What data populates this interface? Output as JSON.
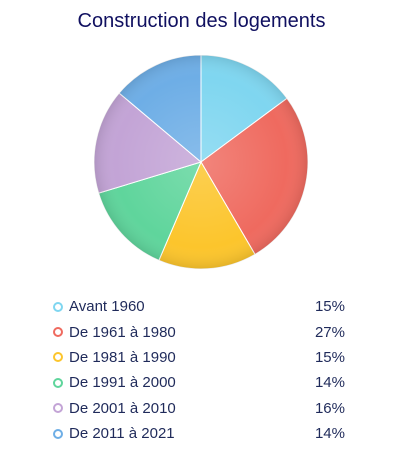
{
  "chart_data": {
    "type": "pie",
    "title": "Construction des logements",
    "slices": [
      {
        "label": "Avant 1960",
        "value": 15,
        "display": "15%",
        "color": "#7fd6f0"
      },
      {
        "label": "De 1961 à 1980",
        "value": 27,
        "display": "27%",
        "color": "#ef6a5f"
      },
      {
        "label": "De 1981 à 1990",
        "value": 15,
        "display": "15%",
        "color": "#fcc52c"
      },
      {
        "label": "De 1991 à 2000",
        "value": 14,
        "display": "14%",
        "color": "#5fd59c"
      },
      {
        "label": "De 2001 à 2010",
        "value": 16,
        "display": "16%",
        "color": "#c3a4d6"
      },
      {
        "label": "De 2011 à 2021",
        "value": 14,
        "display": "14%",
        "color": "#6eaee6"
      }
    ],
    "legend_position": "bottom"
  }
}
